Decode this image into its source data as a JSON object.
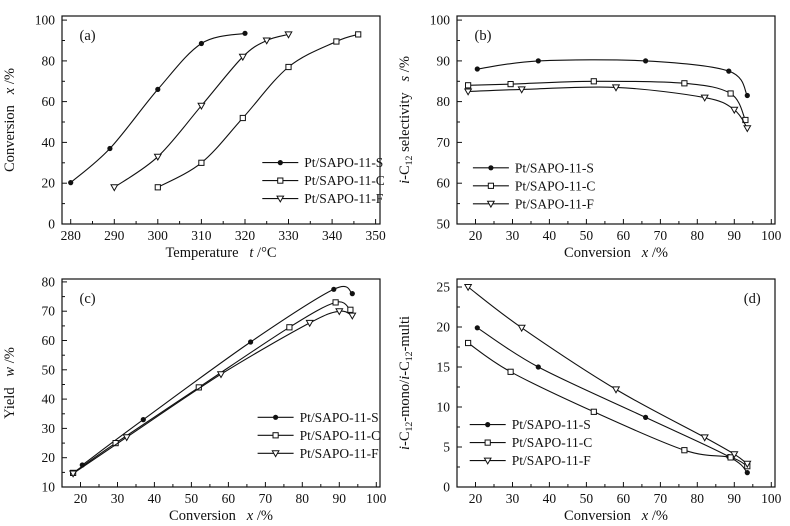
{
  "figure": {
    "background": "#ffffff",
    "ink": "#111111",
    "marker_open_fill": "#ffffff"
  },
  "chart_data": [
    {
      "type": "line",
      "panel": "a",
      "panel_label": "(a)",
      "panel_label_pos": {
        "fx": 0.055,
        "fy": 0.115,
        "anchor": "start"
      },
      "xlabel_runs": [
        {
          "text": "Temperature   "
        },
        {
          "text": "t",
          "italic": true
        },
        {
          "text": " /°C"
        }
      ],
      "ylabel_runs": [
        {
          "text": "Conversion   "
        },
        {
          "text": "x",
          "italic": true
        },
        {
          "text": " /%"
        }
      ],
      "xlim": [
        278,
        351
      ],
      "ylim": [
        0,
        102
      ],
      "xticks_major": [
        280,
        290,
        300,
        310,
        320,
        330,
        340,
        350
      ],
      "xticks_minor": [
        285,
        295,
        305,
        315,
        325,
        335,
        345
      ],
      "yticks_major": [
        0,
        20,
        40,
        60,
        80,
        100
      ],
      "yticks_minor": [
        10,
        30,
        50,
        70,
        90
      ],
      "legend": {
        "fx": 0.63,
        "fy": 0.705
      },
      "series": [
        {
          "name": "Pt/SAPO-11-S",
          "marker": "circle-filled",
          "points": [
            [
              280,
              20.3
            ],
            [
              289,
              37
            ],
            [
              300,
              66
            ],
            [
              310,
              88.5
            ],
            [
              320,
              93.5
            ]
          ]
        },
        {
          "name": "Pt/SAPO-11-C",
          "marker": "square-open",
          "points": [
            [
              300,
              18
            ],
            [
              310,
              30
            ],
            [
              319.5,
              52
            ],
            [
              330,
              77
            ],
            [
              341,
              89.5
            ],
            [
              346,
              93
            ]
          ]
        },
        {
          "name": "Pt/SAPO-11-F",
          "marker": "triangle-down-open",
          "points": [
            [
              290,
              18
            ],
            [
              300,
              33
            ],
            [
              310,
              58
            ],
            [
              319.5,
              82
            ],
            [
              325,
              90
            ],
            [
              330,
              93
            ]
          ]
        }
      ]
    },
    {
      "type": "line",
      "panel": "b",
      "panel_label": "(b)",
      "panel_label_pos": {
        "fx": 0.055,
        "fy": 0.115,
        "anchor": "start"
      },
      "xlabel_runs": [
        {
          "text": "Conversion   "
        },
        {
          "text": "x",
          "italic": true
        },
        {
          "text": " /%"
        }
      ],
      "ylabel_runs": [
        {
          "text": "i",
          "italic": true
        },
        {
          "text": "-C"
        },
        {
          "text": "12",
          "sub": true
        },
        {
          "text": " selectivity   "
        },
        {
          "text": "s",
          "italic": true
        },
        {
          "text": " /%"
        }
      ],
      "xlim": [
        15,
        101
      ],
      "ylim": [
        50,
        101
      ],
      "xticks_major": [
        20,
        30,
        40,
        50,
        60,
        70,
        80,
        90,
        100
      ],
      "xticks_minor": [
        25,
        35,
        45,
        55,
        65,
        75,
        85,
        95
      ],
      "yticks_major": [
        50,
        60,
        70,
        80,
        90,
        100
      ],
      "yticks_minor": [
        55,
        65,
        75,
        85,
        95
      ],
      "legend": {
        "fx": 0.05,
        "fy": 0.73
      },
      "series": [
        {
          "name": "Pt/SAPO-11-S",
          "marker": "circle-filled",
          "points": [
            [
              20.5,
              88
            ],
            [
              37,
              90
            ],
            [
              66,
              90
            ],
            [
              88.5,
              87.5
            ],
            [
              93.5,
              81.5
            ]
          ]
        },
        {
          "name": "Pt/SAPO-11-C",
          "marker": "square-open",
          "points": [
            [
              18,
              84
            ],
            [
              29.5,
              84.3
            ],
            [
              52,
              85
            ],
            [
              76.5,
              84.5
            ],
            [
              89,
              82
            ],
            [
              93,
              75.5
            ]
          ]
        },
        {
          "name": "Pt/SAPO-11-F",
          "marker": "triangle-down-open",
          "points": [
            [
              18,
              82.5
            ],
            [
              32.5,
              83
            ],
            [
              58,
              83.5
            ],
            [
              82,
              81
            ],
            [
              90,
              78
            ],
            [
              93.5,
              73.5
            ]
          ]
        }
      ]
    },
    {
      "type": "line",
      "panel": "c",
      "panel_label": "(c)",
      "panel_label_pos": {
        "fx": 0.055,
        "fy": 0.115,
        "anchor": "start"
      },
      "xlabel_runs": [
        {
          "text": "Conversion   "
        },
        {
          "text": "x",
          "italic": true
        },
        {
          "text": " /%"
        }
      ],
      "ylabel_runs": [
        {
          "text": "Yield   "
        },
        {
          "text": "w",
          "italic": true
        },
        {
          "text": " /%"
        }
      ],
      "xlim": [
        15,
        101
      ],
      "ylim": [
        10,
        81
      ],
      "xticks_major": [
        20,
        30,
        40,
        50,
        60,
        70,
        80,
        90,
        100
      ],
      "xticks_minor": [
        25,
        35,
        45,
        55,
        65,
        75,
        85,
        95
      ],
      "yticks_major": [
        10,
        20,
        30,
        40,
        50,
        60,
        70,
        80
      ],
      "yticks_minor": [
        15,
        25,
        35,
        45,
        55,
        65,
        75
      ],
      "legend": {
        "fx": 0.615,
        "fy": 0.665
      },
      "series": [
        {
          "name": "Pt/SAPO-11-S",
          "marker": "circle-filled",
          "points": [
            [
              20.5,
              17.5
            ],
            [
              37,
              33
            ],
            [
              66,
              59.5
            ],
            [
              88.5,
              77.5
            ],
            [
              93.5,
              76
            ]
          ]
        },
        {
          "name": "Pt/SAPO-11-C",
          "marker": "square-open",
          "points": [
            [
              18,
              14.8
            ],
            [
              29.5,
              25
            ],
            [
              52,
              44
            ],
            [
              76.5,
              64.5
            ],
            [
              89,
              73
            ],
            [
              93,
              70.5
            ]
          ]
        },
        {
          "name": "Pt/SAPO-11-F",
          "marker": "triangle-down-open",
          "points": [
            [
              18,
              14.6
            ],
            [
              32.5,
              27
            ],
            [
              58,
              48.5
            ],
            [
              82,
              66
            ],
            [
              90,
              70
            ],
            [
              93.5,
              68.5
            ]
          ]
        }
      ]
    },
    {
      "type": "line",
      "panel": "d",
      "panel_label": "(d)",
      "panel_label_pos": {
        "fx": 0.955,
        "fy": 0.115,
        "anchor": "end"
      },
      "xlabel_runs": [
        {
          "text": "Conversion   "
        },
        {
          "text": "x",
          "italic": true
        },
        {
          "text": " /%"
        }
      ],
      "ylabel_runs": [
        {
          "text": "i",
          "italic": true
        },
        {
          "text": "-C"
        },
        {
          "text": "12",
          "sub": true
        },
        {
          "text": "-mono/"
        },
        {
          "text": "i",
          "italic": true
        },
        {
          "text": "-C"
        },
        {
          "text": "12",
          "sub": true
        },
        {
          "text": "-multi"
        }
      ],
      "xlim": [
        15,
        101
      ],
      "ylim": [
        0,
        26
      ],
      "xticks_major": [
        20,
        30,
        40,
        50,
        60,
        70,
        80,
        90,
        100
      ],
      "xticks_minor": [
        25,
        35,
        45,
        55,
        65,
        75,
        85,
        95
      ],
      "yticks_major": [
        0,
        5,
        10,
        15,
        20,
        25
      ],
      "yticks_minor": [
        2.5,
        7.5,
        12.5,
        17.5,
        22.5
      ],
      "legend": {
        "fx": 0.04,
        "fy": 0.7
      },
      "series": [
        {
          "name": "Pt/SAPO-11-S",
          "marker": "circle-filled",
          "points": [
            [
              20.5,
              19.9
            ],
            [
              37,
              15
            ],
            [
              66,
              8.7
            ],
            [
              88.5,
              3.8
            ],
            [
              93.5,
              1.8
            ]
          ]
        },
        {
          "name": "Pt/SAPO-11-C",
          "marker": "square-open",
          "points": [
            [
              18,
              18
            ],
            [
              29.5,
              14.4
            ],
            [
              52,
              9.4
            ],
            [
              76.5,
              4.6
            ],
            [
              89,
              3.7
            ],
            [
              93.5,
              2.6
            ]
          ]
        },
        {
          "name": "Pt/SAPO-11-F",
          "marker": "triangle-down-open",
          "points": [
            [
              18,
              25
            ],
            [
              32.5,
              19.9
            ],
            [
              58,
              12.2
            ],
            [
              82,
              6.2
            ],
            [
              90,
              4.1
            ],
            [
              93.5,
              2.9
            ]
          ]
        }
      ]
    }
  ]
}
